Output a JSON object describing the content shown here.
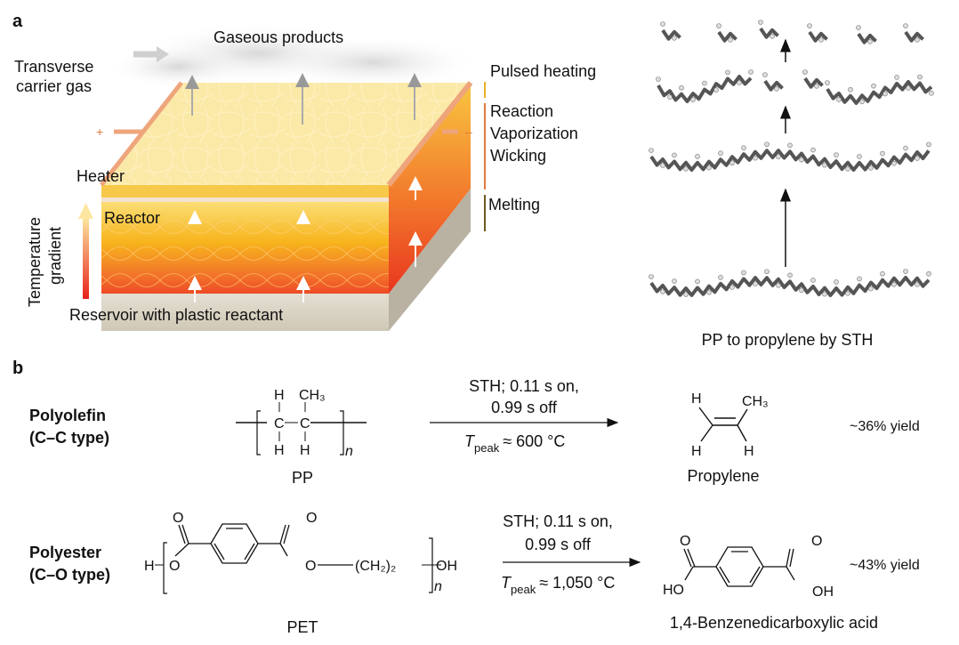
{
  "panel_a": {
    "letter": "a",
    "gaseous_products": "Gaseous products",
    "carrier_gas_line1": "Transverse",
    "carrier_gas_line2": "carrier gas",
    "pulsed_heating": "Pulsed heating",
    "reaction": "Reaction",
    "vaporization": "Vaporization",
    "wicking": "Wicking",
    "melting": "Melting",
    "heater": "Heater",
    "reactor": "Reactor",
    "temperature_gradient_line1": "Temperature",
    "temperature_gradient_line2": "gradient",
    "reservoir": "Reservoir with plastic reactant",
    "plus": "+",
    "minus": "–",
    "molecule_caption": "PP to propylene by STH",
    "colors": {
      "heater_top": "#f8e7a8",
      "reactor_hot": "#ef3b1e",
      "reactor_warm": "#f9c21d",
      "electrode": "#eea57c",
      "reservoir": "#d9d3c4",
      "melting_bar": "#6b5a1e"
    }
  },
  "panel_b": {
    "letter": "b",
    "row1": {
      "class_line1": "Polyolefin",
      "class_line2": "(C–C type)",
      "reactant_label": "PP",
      "struct": {
        "h": "H",
        "ch3": "CH₃",
        "c": "C",
        "n": "n"
      },
      "condition_line1": "STH; 0.11 s on,",
      "condition_line2": "0.99 s off",
      "tpeak_t": "T",
      "tpeak_sub": "peak",
      "tpeak_value": "≈ 600 °C",
      "product_label": "Propylene",
      "yield": "~36% yield"
    },
    "row2": {
      "class_line1": "Polyester",
      "class_line2": "(C–O type)",
      "reactant_label": "PET",
      "struct": {
        "h": "H",
        "o": "O",
        "ch2": "(CH₂)₂",
        "oh": "OH",
        "ho": "HO",
        "n": "n"
      },
      "condition_line1": "STH; 0.11 s on,",
      "condition_line2": "0.99 s off",
      "tpeak_t": "T",
      "tpeak_sub": "peak",
      "tpeak_value": "≈ 1,050 °C",
      "product_label": "1,4-Benzenedicarboxylic acid",
      "yield": "~43% yield"
    }
  }
}
